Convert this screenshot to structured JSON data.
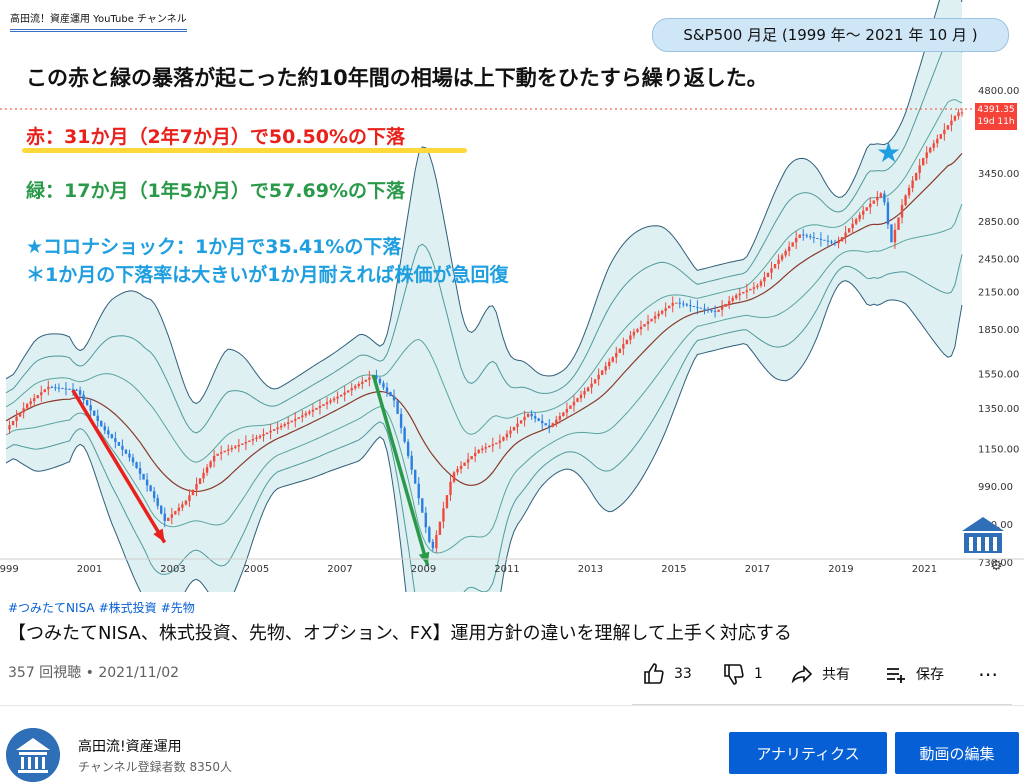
{
  "video": {
    "brand_tag": "高田流！資産運用 YouTube チャンネル",
    "chart_title": "S&P500 月足 (1999 年～ 2021 年 10 月 )",
    "headline": "この赤と緑の暴落が起こった約10年間の相場は上下動をひたすら繰り返した。",
    "red_note": "赤：31か月（2年7か月）で50.50%の下落",
    "green_note": "緑：17か月（1年5か月）で57.69%の下落",
    "covid_note": "★コロナショック：1か月で35.41%の下落",
    "covid_note2": "＊1か月の下落率は大きいが1か月耐えれば株価が急回復",
    "star": "★",
    "price_tag": {
      "price": "4391.35",
      "time": "19d 11h"
    },
    "colors": {
      "red": "#e8211c",
      "green": "#2a9a4a",
      "blue": "#1f9fe0",
      "band_fill": "#dff0f3",
      "up": "#f04a3c",
      "down": "#2b7fe0"
    }
  },
  "chart_data": {
    "type": "line",
    "x_tick_labels": [
      "1999",
      "2001",
      "2003",
      "2005",
      "2007",
      "2009",
      "2011",
      "2013",
      "2015",
      "2017",
      "2019",
      "2021"
    ],
    "y_tick_labels": [
      "4800.00",
      "3450.00",
      "2850.00",
      "2450.00",
      "2150.00",
      "1850.00",
      "1550.00",
      "1350.00",
      "1150.00",
      "990.00",
      "850.00",
      "730.00"
    ],
    "y_scale": "log",
    "x": [
      1999.0,
      1999.5,
      2000.0,
      2000.7,
      2001.3,
      2002.0,
      2002.5,
      2002.8,
      2003.3,
      2004.0,
      2005.0,
      2006.0,
      2007.0,
      2007.8,
      2008.3,
      2008.8,
      2009.2,
      2009.7,
      2010.3,
      2010.8,
      2011.5,
      2012.0,
      2013.0,
      2014.0,
      2015.0,
      2016.0,
      2016.5,
      2017.0,
      2018.0,
      2018.9,
      2019.5,
      2020.0,
      2020.2,
      2020.5,
      2021.0,
      2021.8
    ],
    "series": [
      {
        "values": [
          1240,
          1370,
          1470,
          1450,
          1250,
          1100,
          960,
          860,
          930,
          1120,
          1200,
          1300,
          1420,
          1540,
          1390,
          1000,
          760,
          1040,
          1140,
          1180,
          1320,
          1250,
          1480,
          1820,
          2060,
          1980,
          2120,
          2200,
          2700,
          2600,
          2950,
          3200,
          2600,
          3100,
          3700,
          4391
        ]
      }
    ],
    "arrows": [
      {
        "color": "red",
        "from": [
          2000.6,
          1450
        ],
        "to": [
          2002.8,
          790
        ]
      },
      {
        "color": "green",
        "from": [
          2007.8,
          1540
        ],
        "to": [
          2009.1,
          720
        ]
      }
    ]
  },
  "below": {
    "hashtags": [
      "#つみたてNISA",
      "#株式投資",
      "#先物"
    ],
    "title": "【つみたてNISA、株式投資、先物、オプション、FX】運用方針の違いを理解して上手く対応する",
    "views": "357 回視聴",
    "date": "2021/11/02",
    "likes": "33",
    "dislikes": "1",
    "share": "共有",
    "save": "保存",
    "more": "⋯"
  },
  "channel": {
    "name": "高田流!資産運用",
    "subscribers": "チャンネル登録者数 8350人",
    "analytics_button": "アナリティクス",
    "edit_button": "動画の編集"
  }
}
